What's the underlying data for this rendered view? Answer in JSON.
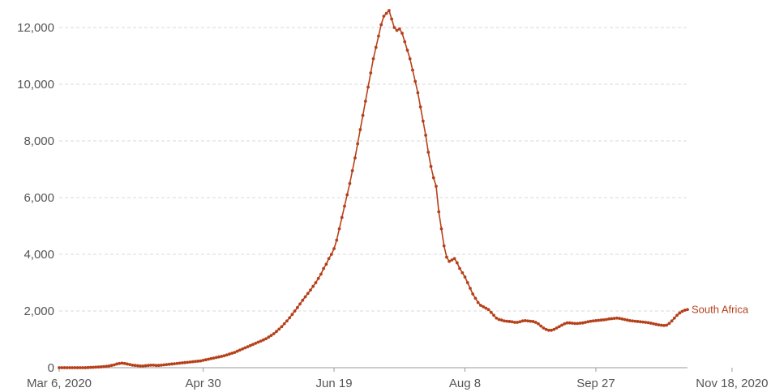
{
  "chart_data": {
    "type": "line",
    "title": "",
    "xlabel": "",
    "ylabel": "",
    "x_start": "Mar 6, 2020",
    "x_end": "Nov 18, 2020",
    "x_ticks": [
      {
        "label": "Mar 6, 2020",
        "day": 0
      },
      {
        "label": "Apr 30",
        "day": 55
      },
      {
        "label": "Jun 19",
        "day": 105
      },
      {
        "label": "Aug 8",
        "day": 155
      },
      {
        "label": "Sep 27",
        "day": 205
      },
      {
        "label": "Nov 18, 2020",
        "day": 257
      }
    ],
    "ylim": [
      0,
      12600
    ],
    "y_ticks": [
      {
        "label": "0",
        "value": 0
      },
      {
        "label": "2,000",
        "value": 2000
      },
      {
        "label": "4,000",
        "value": 4000
      },
      {
        "label": "6,000",
        "value": 6000
      },
      {
        "label": "8,000",
        "value": 8000
      },
      {
        "label": "10,000",
        "value": 10000
      },
      {
        "label": "12,000",
        "value": 12000
      }
    ],
    "grid": true,
    "series": [
      {
        "name": "South Africa",
        "color": "#b5401a",
        "values": [
          0,
          0,
          0,
          0,
          0,
          0,
          0,
          0,
          0,
          0,
          0,
          5,
          10,
          15,
          20,
          25,
          30,
          40,
          50,
          60,
          80,
          100,
          130,
          150,
          160,
          150,
          130,
          110,
          90,
          80,
          70,
          60,
          60,
          70,
          80,
          90,
          90,
          80,
          80,
          90,
          100,
          110,
          120,
          130,
          140,
          150,
          160,
          170,
          180,
          190,
          200,
          210,
          220,
          230,
          240,
          260,
          280,
          300,
          320,
          340,
          360,
          380,
          400,
          420,
          450,
          480,
          510,
          540,
          580,
          620,
          660,
          700,
          740,
          780,
          820,
          860,
          900,
          940,
          980,
          1020,
          1080,
          1140,
          1200,
          1280,
          1360,
          1450,
          1550,
          1650,
          1760,
          1880,
          2000,
          2120,
          2250,
          2380,
          2500,
          2620,
          2740,
          2870,
          3000,
          3150,
          3300,
          3500,
          3650,
          3850,
          4000,
          4200,
          4500,
          4900,
          5300,
          5700,
          6100,
          6500,
          6950,
          7400,
          7900,
          8400,
          8900,
          9400,
          9900,
          10400,
          10900,
          11300,
          11700,
          12100,
          12400,
          12500,
          12600,
          12300,
          12000,
          11900,
          11950,
          11800,
          11500,
          11200,
          10900,
          10500,
          10100,
          9700,
          9200,
          8700,
          8200,
          7600,
          7100,
          6700,
          6400,
          5500,
          4900,
          4300,
          3900,
          3750,
          3800,
          3850,
          3700,
          3500,
          3350,
          3200,
          3000,
          2800,
          2600,
          2450,
          2300,
          2200,
          2150,
          2100,
          2050,
          1950,
          1850,
          1750,
          1700,
          1680,
          1650,
          1640,
          1630,
          1620,
          1600,
          1600,
          1620,
          1650,
          1660,
          1650,
          1640,
          1630,
          1600,
          1550,
          1470,
          1400,
          1350,
          1320,
          1320,
          1350,
          1400,
          1450,
          1500,
          1550,
          1580,
          1580,
          1570,
          1560,
          1560,
          1570,
          1580,
          1600,
          1620,
          1640,
          1650,
          1660,
          1670,
          1680,
          1690,
          1700,
          1720,
          1730,
          1740,
          1750,
          1740,
          1720,
          1700,
          1680,
          1660,
          1650,
          1640,
          1630,
          1620,
          1610,
          1600,
          1590,
          1570,
          1550,
          1530,
          1510,
          1500,
          1490,
          1500,
          1560,
          1650,
          1750,
          1850,
          1930,
          1990,
          2030,
          2050
        ]
      }
    ]
  }
}
